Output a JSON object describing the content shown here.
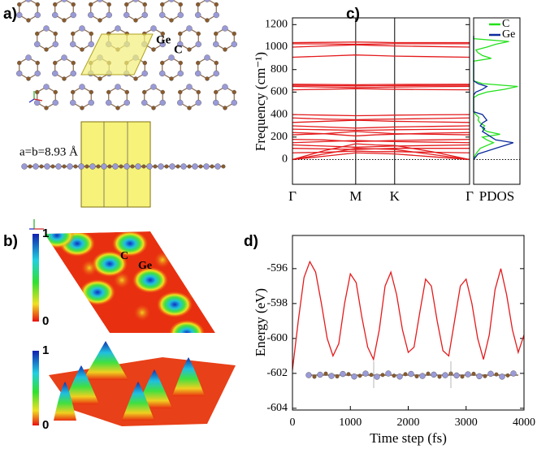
{
  "panel_labels": [
    "a)",
    "b)",
    "c)",
    "d)"
  ],
  "structure": {
    "atom_labels": [
      "Ge",
      "C"
    ],
    "lattice": "a=b=8.93 Å"
  },
  "elf": {
    "atom_labels": [
      "C",
      "Ge"
    ],
    "colorbars": [
      {
        "lim": [
          0,
          1
        ],
        "ticks": [
          0,
          1
        ]
      },
      {
        "lim": [
          0,
          1
        ],
        "ticks": [
          0,
          1
        ]
      }
    ]
  },
  "chart_data": [
    {
      "type": "line",
      "ylabel": "Frequency (cm⁻¹)",
      "x": [
        0,
        0.18,
        0.357,
        0.467,
        0.577,
        0.79,
        1
      ],
      "xlim": [
        0,
        1
      ],
      "xticks": [
        {
          "value": 0,
          "label": "Γ"
        },
        {
          "value": 0.357,
          "label": "M"
        },
        {
          "value": 0.577,
          "label": "K"
        },
        {
          "value": 1,
          "label": "Γ"
        }
      ],
      "xgrid": true,
      "zero_line": true,
      "ylim": [
        -220,
        1260
      ],
      "yticks": [
        0,
        200,
        400,
        600,
        800,
        1000,
        1200
      ],
      "series": [
        {
          "color": "#e41a1c",
          "values": [
            0,
            30,
            60,
            55,
            50,
            25,
            0
          ]
        },
        {
          "color": "#e41a1c",
          "values": [
            0,
            50,
            100,
            95,
            90,
            45,
            0
          ]
        },
        {
          "color": "#e41a1c",
          "values": [
            0,
            80,
            140,
            130,
            125,
            70,
            0
          ]
        },
        {
          "color": "#e41a1c",
          "values": [
            60,
            65,
            75,
            70,
            70,
            65,
            60
          ]
        },
        {
          "color": "#e41a1c",
          "values": [
            100,
            95,
            90,
            95,
            100,
            100,
            100
          ]
        },
        {
          "color": "#e41a1c",
          "values": [
            130,
            120,
            110,
            115,
            120,
            125,
            130
          ]
        },
        {
          "color": "#e41a1c",
          "values": [
            150,
            160,
            170,
            165,
            160,
            155,
            150
          ]
        },
        {
          "color": "#e41a1c",
          "values": [
            180,
            175,
            160,
            165,
            170,
            175,
            180
          ]
        },
        {
          "color": "#e41a1c",
          "values": [
            220,
            230,
            250,
            240,
            230,
            225,
            220
          ]
        },
        {
          "color": "#e41a1c",
          "values": [
            240,
            230,
            210,
            220,
            225,
            235,
            240
          ]
        },
        {
          "color": "#e41a1c",
          "values": [
            270,
            265,
            260,
            262,
            265,
            268,
            270
          ]
        },
        {
          "color": "#e41a1c",
          "values": [
            300,
            290,
            280,
            285,
            290,
            295,
            300
          ]
        },
        {
          "color": "#e41a1c",
          "values": [
            330,
            340,
            350,
            345,
            340,
            335,
            330
          ]
        },
        {
          "color": "#e41a1c",
          "values": [
            370,
            360,
            355,
            358,
            360,
            365,
            370
          ]
        },
        {
          "color": "#e41a1c",
          "values": [
            400,
            395,
            390,
            392,
            395,
            398,
            400
          ]
        },
        {
          "color": "#e41a1c",
          "values": [
            620,
            625,
            630,
            628,
            625,
            622,
            620
          ]
        },
        {
          "color": "#e41a1c",
          "values": [
            650,
            645,
            640,
            642,
            645,
            648,
            650
          ]
        },
        {
          "color": "#e41a1c",
          "values": [
            660,
            658,
            655,
            656,
            658,
            659,
            660
          ]
        },
        {
          "color": "#e41a1c",
          "values": [
            670,
            668,
            665,
            667,
            668,
            669,
            670
          ]
        },
        {
          "color": "#e41a1c",
          "values": [
            910,
            920,
            930,
            925,
            920,
            915,
            910
          ]
        },
        {
          "color": "#e41a1c",
          "values": [
            1000,
            1010,
            1020,
            1015,
            1010,
            1005,
            1000
          ]
        },
        {
          "color": "#e41a1c",
          "values": [
            1030,
            1028,
            1025,
            1027,
            1030,
            1030,
            1030
          ]
        },
        {
          "color": "#e41a1c",
          "values": [
            1040,
            1042,
            1045,
            1043,
            1040,
            1040,
            1040
          ]
        }
      ]
    },
    {
      "type": "line",
      "orientation": "horizontal",
      "xlabel": "PDOS",
      "legend": "upper right",
      "zero_line": true,
      "xlim": [
        0,
        1.05
      ],
      "ylim": [
        -220,
        1260
      ],
      "y": [
        0,
        25,
        50,
        75,
        100,
        125,
        150,
        175,
        200,
        225,
        250,
        275,
        300,
        325,
        350,
        375,
        400,
        425,
        450,
        475,
        500,
        525,
        550,
        575,
        600,
        625,
        650,
        675,
        700,
        725,
        750,
        775,
        800,
        825,
        850,
        875,
        900,
        925,
        950,
        975,
        1000,
        1025,
        1050,
        1075,
        1100
      ],
      "series": [
        {
          "name": "C",
          "color": "#22e01a",
          "values": [
            0,
            0.02,
            0.05,
            0.1,
            0.15,
            0.3,
            0.45,
            0.3,
            0.2,
            0.6,
            0.3,
            0.2,
            0.25,
            0.15,
            0.1,
            0.12,
            0.05,
            0,
            0,
            0,
            0,
            0,
            0,
            0.1,
            0.3,
            0.7,
            1.0,
            0.2,
            0,
            0,
            0,
            0,
            0,
            0,
            0,
            0,
            0.4,
            0.2,
            0.1,
            0.05,
            0.3,
            0.5,
            0.8,
            0,
            0
          ]
        },
        {
          "name": "Ge",
          "color": "#0a2a9a",
          "values": [
            0,
            0.05,
            0.1,
            0.3,
            0.5,
            0.7,
            0.9,
            0.5,
            0.4,
            0.3,
            0.2,
            0.25,
            0.15,
            0.2,
            0.3,
            0.25,
            0.2,
            0,
            0,
            0,
            0,
            0,
            0,
            0,
            0.05,
            0.2,
            0.3,
            0.1,
            0,
            0,
            0,
            0,
            0,
            0,
            0,
            0,
            0,
            0,
            0,
            0,
            0,
            0,
            0,
            0,
            0
          ]
        }
      ]
    },
    {
      "type": "line",
      "xlabel": "Time step (fs)",
      "ylabel": "Energy (eV)",
      "x": [
        0,
        100,
        200,
        300,
        400,
        500,
        600,
        700,
        800,
        900,
        1000,
        1100,
        1200,
        1300,
        1400,
        1500,
        1600,
        1700,
        1800,
        1900,
        2000,
        2100,
        2200,
        2300,
        2400,
        2500,
        2600,
        2700,
        2800,
        2900,
        3000,
        3100,
        3200,
        3300,
        3400,
        3500,
        3600,
        3700,
        3800,
        3900,
        4000
      ],
      "xlim": [
        0,
        4000
      ],
      "xticks": [
        0,
        1000,
        2000,
        3000,
        4000
      ],
      "ylim": [
        -604.1,
        -594.1
      ],
      "yticks": [
        -604,
        -602,
        -600,
        -598,
        -596
      ],
      "series": [
        {
          "color": "#e41a1c",
          "values": [
            -601.8,
            -599,
            -596.5,
            -595.6,
            -596.2,
            -598,
            -600,
            -601,
            -600.3,
            -598,
            -596.3,
            -596.8,
            -598.8,
            -600.5,
            -601.2,
            -599.5,
            -597,
            -596.2,
            -597.5,
            -599.5,
            -600.8,
            -600.5,
            -598.5,
            -596.6,
            -597,
            -599,
            -600.7,
            -601,
            -599,
            -597,
            -596.6,
            -598,
            -600,
            -601.2,
            -599.8,
            -597.2,
            -596,
            -597.5,
            -599.5,
            -600.8,
            -599.8
          ]
        }
      ]
    }
  ]
}
